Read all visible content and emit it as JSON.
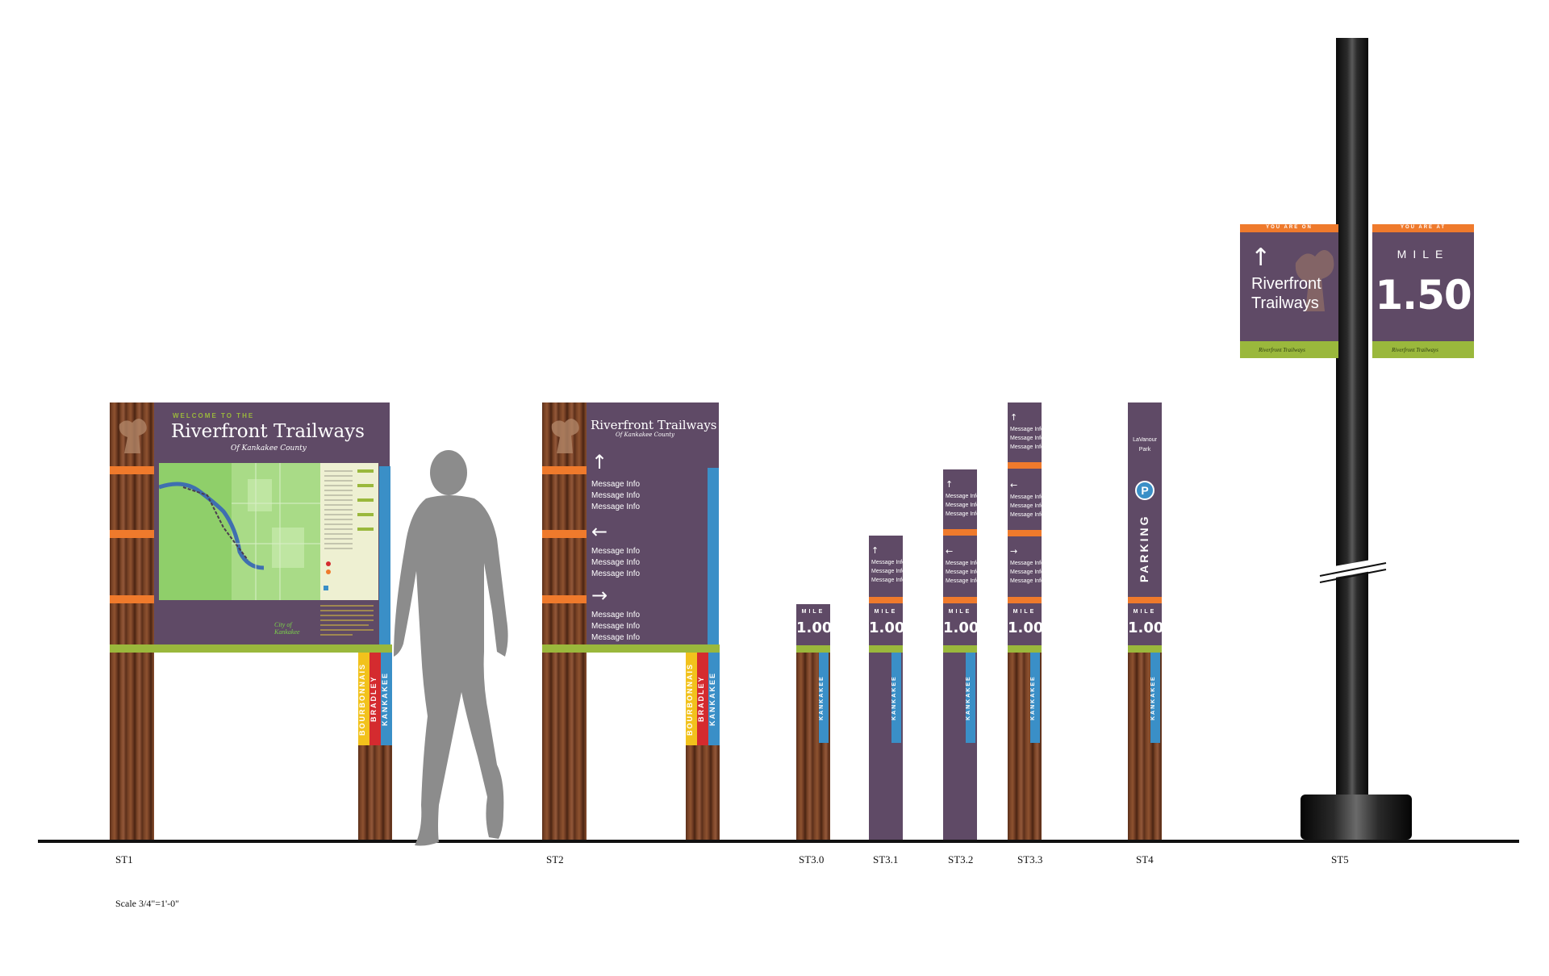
{
  "st1": {
    "welcome": "WELCOME TO THE",
    "title": "Riverfront Trailways",
    "subtitle": "Of Kankakee County",
    "city_logo": "City of Kankakee",
    "band_labels": [
      "BOURBONNAIS",
      "BRADLEY",
      "KANKAKEE"
    ]
  },
  "st2": {
    "title": "Riverfront Trailways",
    "subtitle": "Of Kankakee County",
    "messages": [
      "Message Info",
      "Message Info",
      "Message Info"
    ],
    "band_labels": [
      "BOURBONNAIS",
      "BRADLEY",
      "KANKAKEE"
    ]
  },
  "small_posts": {
    "mile_word": "MILE",
    "mile_value": "1.00",
    "band_label": "KANKAKEE",
    "message": "Message Info"
  },
  "st4": {
    "place_line1": "LaVanour",
    "place_line2": "Park",
    "parking_symbol": "P",
    "parking_word": "PARKING"
  },
  "st5": {
    "left_header": "YOU ARE ON",
    "left_title_line1": "Riverfront",
    "left_title_line2": "Trailways",
    "right_header": "YOU ARE AT",
    "right_mile_word": "MILE",
    "right_mile_value": "1.50",
    "footer_logo": "Riverfront Trailways"
  },
  "labels": {
    "st1": "ST1",
    "st2": "ST2",
    "st30": "ST3.0",
    "st31": "ST3.1",
    "st32": "ST3.2",
    "st33": "ST3.3",
    "st4": "ST4",
    "st5": "ST5",
    "scale": "Scale 3/4\"=1'-0\""
  },
  "icons": {
    "arrow_up": "arrow-up-icon",
    "arrow_left": "arrow-left-icon",
    "arrow_right": "arrow-right-icon",
    "figure": "human-silhouette-icon",
    "tree_logo": "tree-logo-icon"
  },
  "colors": {
    "purple": "#5f4a66",
    "orange": "#ef7a2c",
    "green": "#9ab83c",
    "blue": "#3a8fc7",
    "red": "#d42b2f",
    "yellow": "#f2c21c",
    "map_green": "#8fcf6a"
  }
}
